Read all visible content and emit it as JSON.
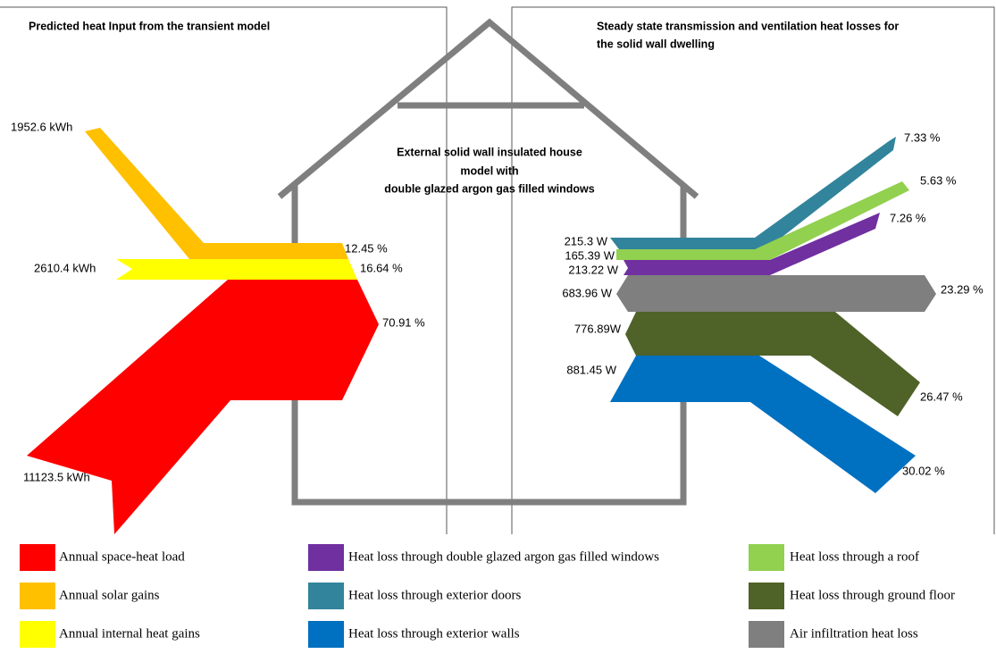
{
  "left_panel": {
    "title": "Predicted heat Input from the transient model",
    "inputs": [
      {
        "label": "1952.6 kWh",
        "percent": "12.45 %"
      },
      {
        "label": "2610.4 kWh",
        "percent": "16.64 %"
      },
      {
        "label": "11123.5 kWh",
        "percent": "70.91 %"
      }
    ]
  },
  "center": {
    "lines": [
      "External solid wall insulated house",
      "model with",
      "double glazed argon gas filled windows"
    ]
  },
  "right_panel": {
    "title": [
      "Steady state transmission and ventilation heat losses for",
      "the solid wall dwelling"
    ],
    "losses": [
      {
        "label": "215.3 W",
        "percent": "7.33 %"
      },
      {
        "label": "165.39 W",
        "percent": "5.63 %"
      },
      {
        "label": "213.22 W",
        "percent": "7.26 %"
      },
      {
        "label": "683.96 W",
        "percent": "23.29 %"
      },
      {
        "label": "776.89W",
        "percent": "26.47 %"
      },
      {
        "label": "881.45 W",
        "percent": "30.02 %"
      }
    ]
  },
  "legend": [
    "Annual space-heat load",
    "Annual solar gains",
    "Annual internal heat gains",
    "Heat loss through double glazed argon gas filled windows",
    "Heat loss through exterior doors",
    "Heat loss through exterior walls",
    "Heat loss through a roof",
    "Heat loss through ground floor",
    "Air infiltration heat loss"
  ]
}
